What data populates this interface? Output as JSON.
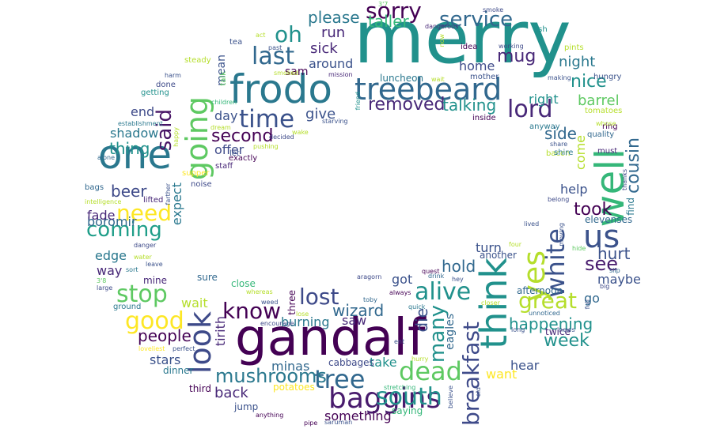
{
  "words": [
    {
      "text": "merry",
      "color": "#21918c"
    },
    {
      "text": "gandalf",
      "color": "#440154"
    },
    {
      "text": "frodo",
      "color": "#2a788e"
    },
    {
      "text": "treebeard",
      "color": "#31688e"
    },
    {
      "text": "think",
      "color": "#21918c"
    },
    {
      "text": "one",
      "color": "#2a788e"
    },
    {
      "text": "well",
      "color": "#35b779"
    },
    {
      "text": "going",
      "color": "#5ec962"
    },
    {
      "text": "us",
      "color": "#3b528b"
    },
    {
      "text": "tree",
      "color": "#31688e"
    },
    {
      "text": "yes",
      "color": "#b5de2b"
    },
    {
      "text": "dead",
      "color": "#5ec962"
    },
    {
      "text": "look",
      "color": "#3e4a89"
    },
    {
      "text": "baggins",
      "color": "#481b6d"
    },
    {
      "text": "time",
      "color": "#3b528b"
    },
    {
      "text": "lord",
      "color": "#482878"
    },
    {
      "text": "alive",
      "color": "#21918c"
    },
    {
      "text": "lost",
      "color": "#3e4a89"
    },
    {
      "text": "great",
      "color": "#b5de2b"
    },
    {
      "text": "south",
      "color": "#21918c"
    },
    {
      "text": "good",
      "color": "#fde725"
    },
    {
      "text": "stop",
      "color": "#5ec962"
    },
    {
      "text": "white",
      "color": "#3b528b"
    },
    {
      "text": "last",
      "color": "#31688e"
    },
    {
      "text": "sorry",
      "color": "#440154"
    },
    {
      "text": "know",
      "color": "#440154"
    },
    {
      "text": "said",
      "color": "#471365"
    },
    {
      "text": "oh",
      "color": "#21918c"
    },
    {
      "text": "need",
      "color": "#fde725"
    },
    {
      "text": "many",
      "color": "#21918c"
    },
    {
      "text": "breakfast",
      "color": "#3e4a89"
    },
    {
      "text": "coming",
      "color": "#1f9e89"
    },
    {
      "text": "mushrooms",
      "color": "#2a788e"
    },
    {
      "text": "service",
      "color": "#31688e"
    },
    {
      "text": "removed",
      "color": "#482878"
    },
    {
      "text": "see",
      "color": "#481b6d"
    },
    {
      "text": "took",
      "color": "#440154"
    },
    {
      "text": "week",
      "color": "#21918c"
    },
    {
      "text": "people",
      "color": "#440154"
    },
    {
      "text": "cousin",
      "color": "#31688e"
    },
    {
      "text": "mug",
      "color": "#482878"
    },
    {
      "text": "beer",
      "color": "#3e4a89"
    },
    {
      "text": "hurt",
      "color": "#3b528b"
    },
    {
      "text": "nice",
      "color": "#21918c"
    },
    {
      "text": "hold",
      "color": "#31688e"
    },
    {
      "text": "taller",
      "color": "#35b779"
    },
    {
      "text": "second",
      "color": "#440154"
    },
    {
      "text": "die",
      "color": "#3b528b"
    },
    {
      "text": "wizard",
      "color": "#31688e"
    },
    {
      "text": "please",
      "color": "#2a788e"
    },
    {
      "text": "side",
      "color": "#31688e"
    },
    {
      "text": "thing",
      "color": "#21918c"
    },
    {
      "text": "happening",
      "color": "#21918c"
    },
    {
      "text": "run",
      "color": "#482878"
    },
    {
      "text": "sick",
      "color": "#482878"
    },
    {
      "text": "talking",
      "color": "#21918c"
    },
    {
      "text": "barrel",
      "color": "#5ec962"
    },
    {
      "text": "night",
      "color": "#2a788e"
    },
    {
      "text": "help",
      "color": "#3b528b"
    },
    {
      "text": "boromir",
      "color": "#31688e"
    },
    {
      "text": "shadow",
      "color": "#2a788e"
    },
    {
      "text": "give",
      "color": "#3b528b"
    },
    {
      "text": "got",
      "color": "#3b528b"
    },
    {
      "text": "back",
      "color": "#482878"
    },
    {
      "text": "stars",
      "color": "#3b528b"
    },
    {
      "text": "take",
      "color": "#21918c"
    },
    {
      "text": "something",
      "color": "#440154"
    },
    {
      "text": "wait",
      "color": "#b5de2b"
    },
    {
      "text": "around",
      "color": "#3b528b"
    },
    {
      "text": "home",
      "color": "#3e4a89"
    },
    {
      "text": "burning",
      "color": "#2a788e"
    },
    {
      "text": "saw",
      "color": "#482878"
    },
    {
      "text": "minas",
      "color": "#31688e"
    },
    {
      "text": "tirith",
      "color": "#482878"
    },
    {
      "text": "way",
      "color": "#482878"
    },
    {
      "text": "edge",
      "color": "#2a788e"
    },
    {
      "text": "end",
      "color": "#3e4a89"
    },
    {
      "text": "day",
      "color": "#3b528b"
    },
    {
      "text": "offer",
      "color": "#3e4a89"
    },
    {
      "text": "come",
      "color": "#b5de2b"
    },
    {
      "text": "maybe",
      "color": "#3b528b"
    },
    {
      "text": "go",
      "color": "#31688e"
    },
    {
      "text": "want",
      "color": "#fde725"
    },
    {
      "text": "hear",
      "color": "#3b528b"
    },
    {
      "text": "turn",
      "color": "#3b528b"
    },
    {
      "text": "expect",
      "color": "#2a788e"
    },
    {
      "text": "fade",
      "color": "#482878"
    },
    {
      "text": "right",
      "color": "#21918c"
    },
    {
      "text": "mean",
      "color": "#3b528b"
    },
    {
      "text": "sam",
      "color": "#440154"
    },
    {
      "text": "eagles",
      "color": "#31688e"
    },
    {
      "text": "close",
      "color": "#35b779"
    },
    {
      "text": "jump",
      "color": "#3b528b"
    },
    {
      "text": "dinner",
      "color": "#2a788e"
    },
    {
      "text": "third",
      "color": "#440154"
    },
    {
      "text": "saying",
      "color": "#35b779"
    },
    {
      "text": "cabbages",
      "color": "#3e4a89"
    },
    {
      "text": "potatoes",
      "color": "#fde725"
    },
    {
      "text": "afternoon",
      "color": "#31688e"
    },
    {
      "text": "twice",
      "color": "#482878"
    },
    {
      "text": "sure",
      "color": "#31688e"
    },
    {
      "text": "find",
      "color": "#2a788e"
    },
    {
      "text": "elevenses",
      "color": "#31688e"
    },
    {
      "text": "another",
      "color": "#3b528b"
    },
    {
      "text": "three",
      "color": "#440154"
    },
    {
      "text": "mine",
      "color": "#482878"
    },
    {
      "text": "luncheon",
      "color": "#2a788e"
    },
    {
      "text": "inside",
      "color": "#440154"
    },
    {
      "text": "anyway",
      "color": "#2a788e"
    },
    {
      "text": "mother",
      "color": "#3b528b"
    },
    {
      "text": "idea",
      "color": "#440154"
    },
    {
      "text": "steady",
      "color": "#b5de2b"
    },
    {
      "text": "tea",
      "color": "#3b528b"
    },
    {
      "text": "done",
      "color": "#3e4a89"
    },
    {
      "text": "getting",
      "color": "#21918c"
    },
    {
      "text": "bags",
      "color": "#31688e"
    },
    {
      "text": "lifted",
      "color": "#482878"
    },
    {
      "text": "supper",
      "color": "#fde725"
    },
    {
      "text": "ground",
      "color": "#2a788e"
    },
    {
      "text": "ash",
      "color": "#21918c"
    },
    {
      "text": "pints",
      "color": "#b5de2b"
    },
    {
      "text": "hungry",
      "color": "#3b528b"
    },
    {
      "text": "tomatoes",
      "color": "#b5de2b"
    },
    {
      "text": "ring",
      "color": "#440154"
    },
    {
      "text": "quality",
      "color": "#31688e"
    },
    {
      "text": "bacon",
      "color": "#b5de2b"
    },
    {
      "text": "shire",
      "color": "#2a788e"
    },
    {
      "text": "must",
      "color": "#482878"
    },
    {
      "text": "let",
      "color": "#3b528b"
    },
    {
      "text": "exactly",
      "color": "#440154"
    },
    {
      "text": "staff",
      "color": "#482878"
    },
    {
      "text": "noise",
      "color": "#3e4a89"
    },
    {
      "text": "talk",
      "color": "#5ec962"
    },
    {
      "text": "aragorn",
      "color": "#3e4a89"
    },
    {
      "text": "quest",
      "color": "#440154"
    },
    {
      "text": "drink",
      "color": "#31688e"
    },
    {
      "text": "hey",
      "color": "#3b528b"
    },
    {
      "text": "slip",
      "color": "#31688e"
    },
    {
      "text": "big",
      "color": "#3e4a89"
    },
    {
      "text": "hide",
      "color": "#5ec962"
    },
    {
      "text": "moving",
      "color": "#3b528b"
    },
    {
      "text": "lived",
      "color": "#3b528b"
    },
    {
      "text": "belong",
      "color": "#3e4a89"
    },
    {
      "text": "four",
      "color": "#b5de2b"
    },
    {
      "text": "weed",
      "color": "#3b528b"
    },
    {
      "text": "encourage",
      "color": "#3e4a89"
    },
    {
      "text": "whereas",
      "color": "#b5de2b"
    },
    {
      "text": "lose",
      "color": "#b5de2b"
    },
    {
      "text": "toby",
      "color": "#31688e"
    },
    {
      "text": "always",
      "color": "#440154"
    },
    {
      "text": "quick",
      "color": "#2a788e"
    },
    {
      "text": "closer",
      "color": "#b5de2b"
    },
    {
      "text": "unnoticed",
      "color": "#31688e"
    },
    {
      "text": "full",
      "color": "#3b528b"
    },
    {
      "text": "long",
      "color": "#3b528b"
    },
    {
      "text": "news",
      "color": "#3b528b"
    },
    {
      "text": "hurry",
      "color": "#b5de2b"
    },
    {
      "text": "ent",
      "color": "#3b528b"
    },
    {
      "text": "stretching",
      "color": "#35b779"
    },
    {
      "text": "old",
      "color": "#3b528b"
    },
    {
      "text": "believe",
      "color": "#3b528b"
    },
    {
      "text": "pipe",
      "color": "#440154"
    },
    {
      "text": "saruman",
      "color": "#3b528b"
    },
    {
      "text": "anything",
      "color": "#440154"
    },
    {
      "text": "perfect",
      "color": "#3b528b"
    },
    {
      "text": "loveliest",
      "color": "#fde725"
    },
    {
      "text": "intelligence",
      "color": "#b5de2b"
    },
    {
      "text": "danger",
      "color": "#3e4a89"
    },
    {
      "text": "water",
      "color": "#b5de2b"
    },
    {
      "text": "leave",
      "color": "#3b528b"
    },
    {
      "text": "sort",
      "color": "#2a788e"
    },
    {
      "text": "large",
      "color": "#3e4a89"
    },
    {
      "text": "3'8",
      "color": "#5ec962"
    },
    {
      "text": "alone",
      "color": "#31688e"
    },
    {
      "text": "establishment",
      "color": "#2a788e"
    },
    {
      "text": "harm",
      "color": "#3b528b"
    },
    {
      "text": "happy",
      "color": "#b5de2b"
    },
    {
      "text": "farther",
      "color": "#3b528b"
    },
    {
      "text": "act",
      "color": "#b5de2b"
    },
    {
      "text": "past",
      "color": "#3b528b"
    },
    {
      "text": "smoked",
      "color": "#b5de2b"
    },
    {
      "text": "mission",
      "color": "#482878"
    },
    {
      "text": "wake",
      "color": "#b5de2b"
    },
    {
      "text": "starving",
      "color": "#3b528b"
    },
    {
      "text": "friend",
      "color": "#21918c"
    },
    {
      "text": "children",
      "color": "#35b779"
    },
    {
      "text": "dream",
      "color": "#b5de2b"
    },
    {
      "text": "pushing",
      "color": "#b5de2b"
    },
    {
      "text": "decided",
      "color": "#3e4a89"
    },
    {
      "text": "3'7",
      "color": "#5ec962"
    },
    {
      "text": "wait",
      "color": "#b5de2b"
    },
    {
      "text": "dangerous",
      "color": "#482878"
    },
    {
      "text": "now",
      "color": "#b5de2b"
    },
    {
      "text": "smoke",
      "color": "#3e4a89"
    },
    {
      "text": "working",
      "color": "#3e4a89"
    },
    {
      "text": "making",
      "color": "#3b528b"
    },
    {
      "text": "whose",
      "color": "#b5de2b"
    },
    {
      "text": "share",
      "color": "#3b528b"
    },
    {
      "text": "thanks",
      "color": "#3e4a89"
    },
    {
      "text": "nothing",
      "color": "#3b528b"
    }
  ]
}
